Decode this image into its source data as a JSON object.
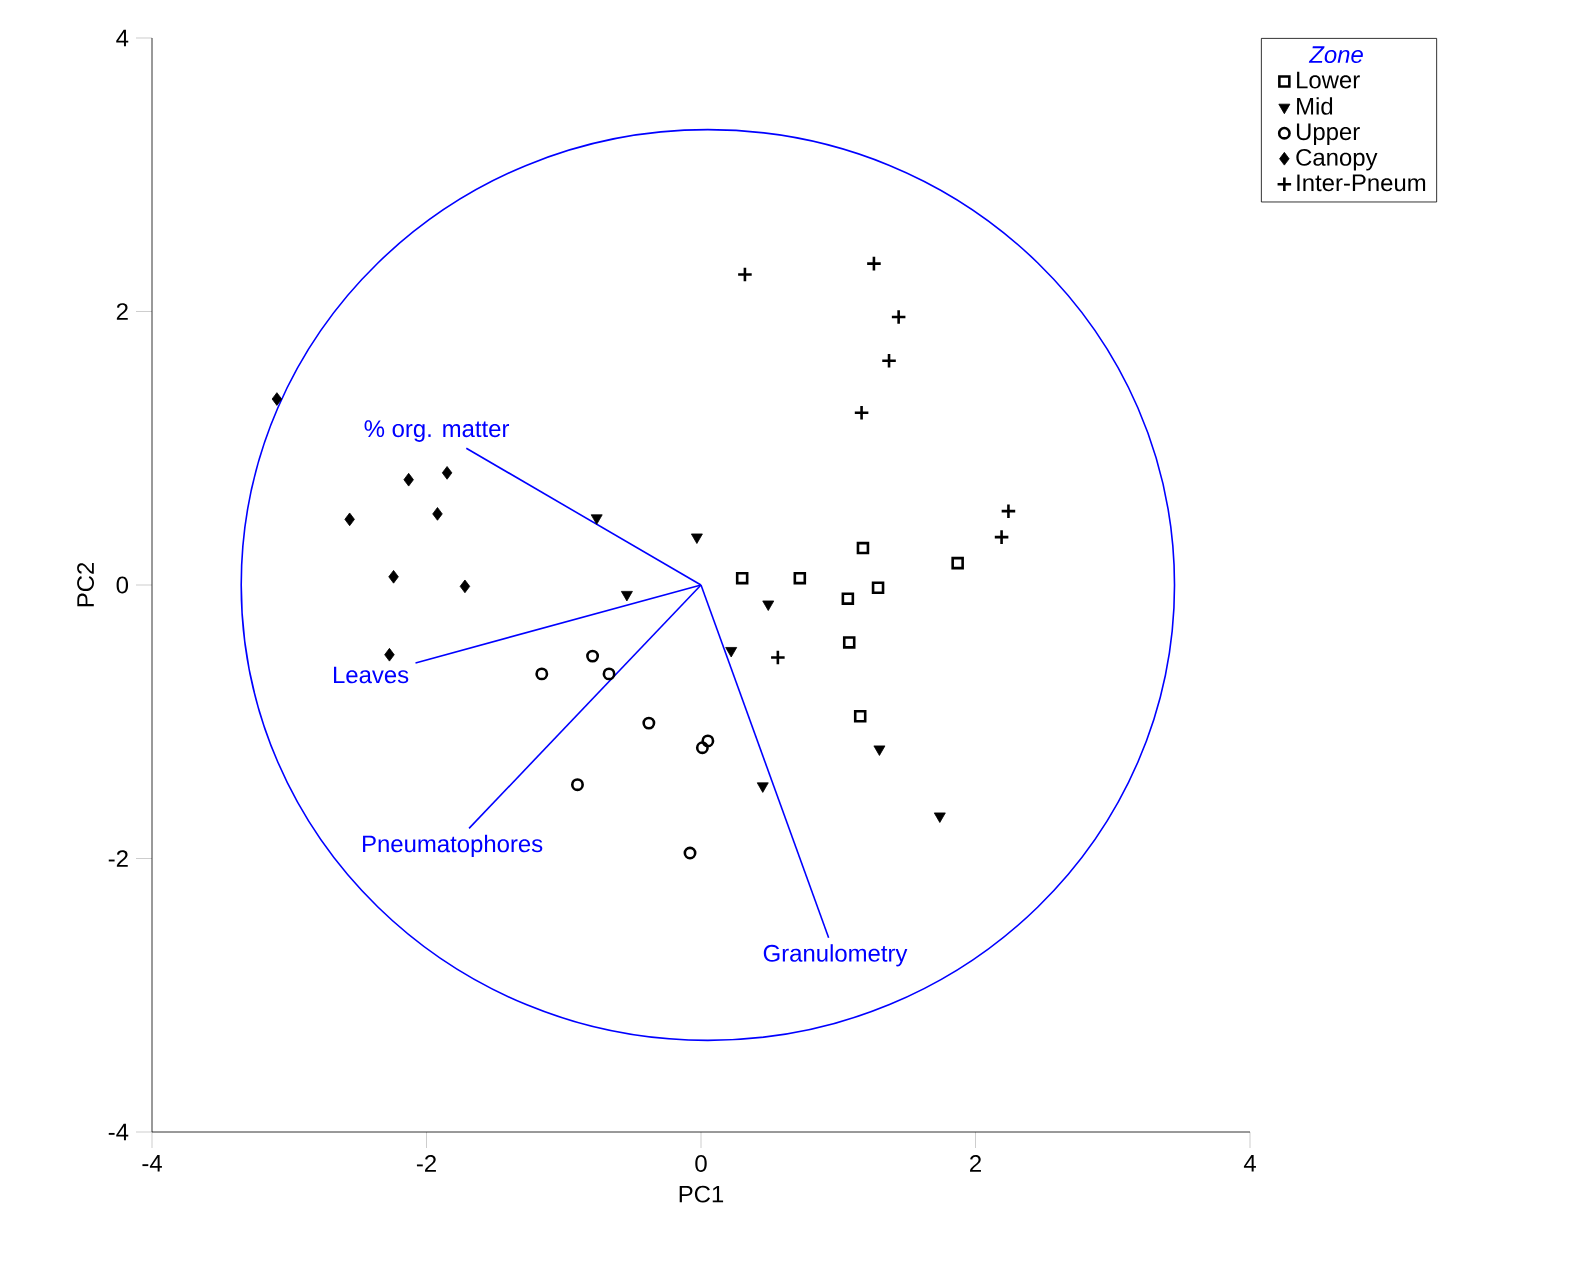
{
  "chart_data": {
    "type": "scatter",
    "xlabel": "PC1",
    "ylabel": "PC2",
    "legend_title": "Zone",
    "legend": "top right",
    "grid": false,
    "xlim": [
      -4,
      4
    ],
    "ylim": [
      -4,
      4
    ],
    "xticks": [
      -4,
      -2,
      0,
      2,
      4
    ],
    "yticks": [
      -4,
      -2,
      0,
      2,
      4
    ],
    "series": [
      {
        "name": "Lower",
        "marker": "square",
        "color": "#000000",
        "x": [
          0.3,
          0.72,
          1.18,
          1.29,
          1.07,
          1.87,
          1.08,
          1.16
        ],
        "values": [
          0.05,
          0.05,
          0.27,
          -0.02,
          -0.1,
          0.16,
          -0.42,
          -0.96
        ]
      },
      {
        "name": "Mid",
        "marker": "triangle",
        "color": "#000000",
        "x": [
          -0.76,
          -0.03,
          -0.54,
          0.49,
          0.22,
          1.3,
          0.45,
          1.74
        ],
        "values": [
          0.49,
          0.35,
          -0.07,
          -0.14,
          -0.48,
          -1.2,
          -1.47,
          -1.69
        ]
      },
      {
        "name": "Upper",
        "marker": "circle",
        "color": "#000000",
        "x": [
          -1.16,
          -0.79,
          -0.67,
          -0.38,
          0.05,
          0.01,
          -0.9,
          -0.08
        ],
        "values": [
          -0.65,
          -0.52,
          -0.65,
          -1.01,
          -1.14,
          -1.19,
          -1.46,
          -1.96
        ]
      },
      {
        "name": "Canopy",
        "marker": "diamond",
        "color": "#000000",
        "x": [
          -3.09,
          -2.13,
          -1.85,
          -2.56,
          -1.92,
          -2.24,
          -1.72,
          -2.27
        ],
        "values": [
          1.36,
          0.77,
          0.82,
          0.48,
          0.52,
          0.06,
          -0.01,
          -0.51
        ]
      },
      {
        "name": "Inter-Pneum",
        "marker": "cross",
        "color": "#000000",
        "x": [
          0.32,
          1.26,
          1.44,
          1.37,
          1.17,
          2.24,
          2.19,
          0.56
        ],
        "values": [
          2.27,
          2.35,
          1.96,
          1.64,
          1.26,
          0.54,
          0.35,
          -0.53
        ]
      },
      {
        "name": "% org. matter",
        "type": "line",
        "marker": "none",
        "line_style": "solid",
        "color": "#0000ff",
        "x": [
          0,
          -1.71
        ],
        "values": [
          0,
          1.0
        ]
      },
      {
        "name": "Leaves",
        "type": "line",
        "marker": "none",
        "line_style": "solid",
        "color": "#0000ff",
        "x": [
          0,
          -2.08
        ],
        "values": [
          0,
          -0.57
        ]
      },
      {
        "name": "Pneumatophores",
        "type": "line",
        "marker": "none",
        "line_style": "solid",
        "color": "#0000ff",
        "x": [
          0,
          -1.69
        ],
        "values": [
          0,
          -1.78
        ]
      },
      {
        "name": "Granulometry",
        "type": "line",
        "marker": "none",
        "line_style": "solid",
        "color": "#0000ff",
        "x": [
          0,
          0.93
        ],
        "values": [
          0,
          -2.58
        ]
      }
    ]
  }
}
